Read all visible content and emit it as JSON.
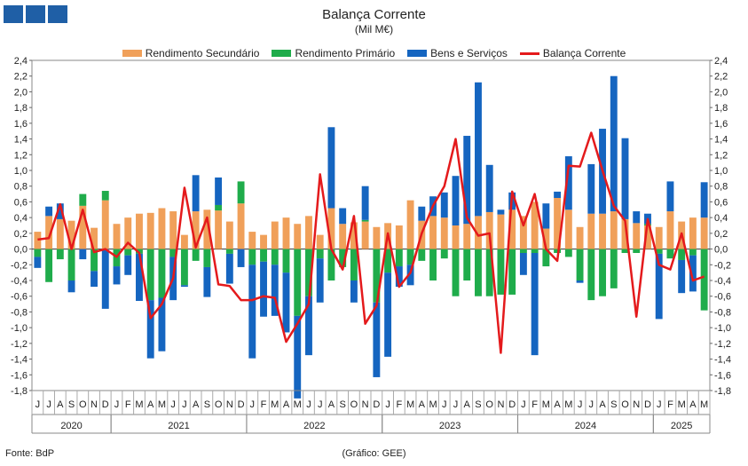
{
  "header": {
    "title": "Balança Corrente",
    "subtitle": "(Mil M€)"
  },
  "colors": {
    "rendimento_secundario": "#f0a05a",
    "rendimento_primario": "#1fac4b",
    "bens_servicos": "#1565c0",
    "balanca_corrente": "#e41a1c",
    "logo": "#1f5fa6"
  },
  "footer": {
    "source": "Fonte: BdP",
    "credit": "(Gráfico: GEE)"
  },
  "chart_data": {
    "type": "bar",
    "subtype": "stacked bar with line overlay",
    "title": "Balança Corrente",
    "subtitle": "(Mil M€)",
    "ylim": [
      -1.8,
      2.4
    ],
    "yticks": [
      "-1,8",
      "-1,6",
      "-1,4",
      "-1,2",
      "-1,0",
      "-0,8",
      "-0,6",
      "-0,4",
      "-0,2",
      "0,0",
      "0,2",
      "0,4",
      "0,6",
      "0,8",
      "1,0",
      "1,2",
      "1,4",
      "1,6",
      "1,8",
      "2,0",
      "2,2",
      "2,4"
    ],
    "month_labels": [
      "J",
      "J",
      "A",
      "S",
      "O",
      "N",
      "D",
      "J",
      "F",
      "M",
      "A",
      "M",
      "J",
      "J",
      "A",
      "S",
      "O",
      "N",
      "D",
      "J",
      "F",
      "M",
      "A",
      "M",
      "J",
      "J",
      "A",
      "S",
      "O",
      "N",
      "D",
      "J",
      "F",
      "M",
      "A",
      "M",
      "J",
      "J",
      "A",
      "S",
      "O",
      "N",
      "D",
      "J",
      "F",
      "M",
      "A",
      "M",
      "J",
      "J",
      "A",
      "S",
      "O",
      "N",
      "D",
      "J",
      "F",
      "M",
      "A",
      "M"
    ],
    "year_labels": [
      {
        "label": "2020",
        "start": 0,
        "end": 6
      },
      {
        "label": "2021",
        "start": 7,
        "end": 18
      },
      {
        "label": "2022",
        "start": 19,
        "end": 30
      },
      {
        "label": "2023",
        "start": 31,
        "end": 42
      },
      {
        "label": "2024",
        "start": 43,
        "end": 54
      },
      {
        "label": "2025",
        "start": 55,
        "end": 59
      }
    ],
    "legend_position": "top-center",
    "series": [
      {
        "name": "Rendimento Secundário",
        "key": "rendimento_secundario",
        "kind": "bar",
        "values": [
          0.22,
          0.42,
          0.38,
          0.36,
          0.55,
          0.27,
          0.62,
          0.32,
          0.4,
          0.45,
          0.46,
          0.52,
          0.48,
          0.18,
          0.48,
          0.5,
          0.49,
          0.35,
          0.58,
          0.22,
          0.18,
          0.35,
          0.4,
          0.32,
          0.42,
          0.18,
          0.52,
          0.32,
          0.34,
          0.35,
          0.28,
          0.33,
          0.3,
          0.62,
          0.36,
          0.42,
          0.4,
          0.3,
          0.32,
          0.42,
          0.47,
          0.44,
          0.5,
          0.42,
          0.6,
          0.26,
          0.65,
          0.5,
          0.28,
          0.45,
          0.45,
          0.48,
          0.38,
          0.33,
          0.3,
          0.28,
          0.48,
          0.35,
          0.4,
          0.4
        ]
      },
      {
        "name": "Rendimento Primário",
        "key": "rendimento_primario",
        "kind": "bar",
        "values": [
          -0.1,
          -0.42,
          -0.13,
          -0.4,
          0.15,
          -0.28,
          0.12,
          -0.22,
          -0.08,
          -0.06,
          -0.65,
          -0.62,
          -0.1,
          -0.46,
          -0.15,
          -0.23,
          0.07,
          -0.06,
          0.28,
          -0.2,
          -0.16,
          -0.2,
          -0.3,
          -0.85,
          -0.6,
          -0.12,
          -0.4,
          -0.23,
          -0.4,
          0.02,
          -0.68,
          -0.3,
          -0.22,
          -0.2,
          -0.15,
          -0.4,
          -0.12,
          -0.6,
          -0.4,
          -0.6,
          -0.6,
          -0.58,
          -0.58,
          -0.05,
          -0.05,
          -0.22,
          -0.05,
          -0.1,
          -0.4,
          -0.65,
          -0.6,
          -0.5,
          -0.05,
          -0.05,
          0.02,
          -0.06,
          -0.12,
          -0.14,
          -0.08,
          -0.78
        ]
      },
      {
        "name": "Bens e Serviços",
        "key": "bens_servicos",
        "kind": "bar",
        "values": [
          -0.14,
          0.12,
          0.2,
          -0.15,
          -0.13,
          -0.2,
          -0.76,
          -0.23,
          -0.25,
          -0.6,
          -0.74,
          -0.68,
          -0.55,
          -0.02,
          0.46,
          -0.38,
          0.35,
          -0.38,
          -0.23,
          -1.19,
          -0.7,
          -0.65,
          -0.76,
          -1.05,
          -0.75,
          -0.56,
          1.03,
          0.2,
          -0.28,
          0.43,
          -0.95,
          -1.07,
          -0.26,
          -0.26,
          0.18,
          0.25,
          0.32,
          0.63,
          1.12,
          1.7,
          0.6,
          0.06,
          0.22,
          -0.28,
          -1.3,
          0.32,
          0.08,
          0.68,
          -0.03,
          0.63,
          1.08,
          1.72,
          1.03,
          0.15,
          0.13,
          -0.83,
          0.38,
          -0.42,
          -0.46,
          0.45
        ]
      },
      {
        "name": "Balança Corrente",
        "key": "balanca_corrente",
        "kind": "line",
        "values": [
          0.12,
          0.14,
          0.57,
          0.0,
          0.5,
          -0.04,
          0.0,
          -0.1,
          0.08,
          -0.05,
          -0.88,
          -0.7,
          -0.37,
          0.78,
          0.02,
          0.4,
          -0.45,
          -0.47,
          -0.65,
          -0.65,
          -0.6,
          -0.62,
          -1.18,
          -0.95,
          -0.7,
          0.95,
          0.0,
          -0.26,
          0.42,
          -0.95,
          -0.72,
          0.2,
          -0.48,
          -0.3,
          0.2,
          0.55,
          0.8,
          1.4,
          0.4,
          0.17,
          0.2,
          -1.32,
          0.73,
          0.3,
          0.7,
          0.0,
          -0.15,
          1.06,
          1.05,
          1.48,
          1.0,
          0.55,
          0.36,
          -0.86,
          0.38,
          -0.2,
          -0.26,
          0.2,
          -0.4,
          -0.35
        ]
      }
    ]
  }
}
